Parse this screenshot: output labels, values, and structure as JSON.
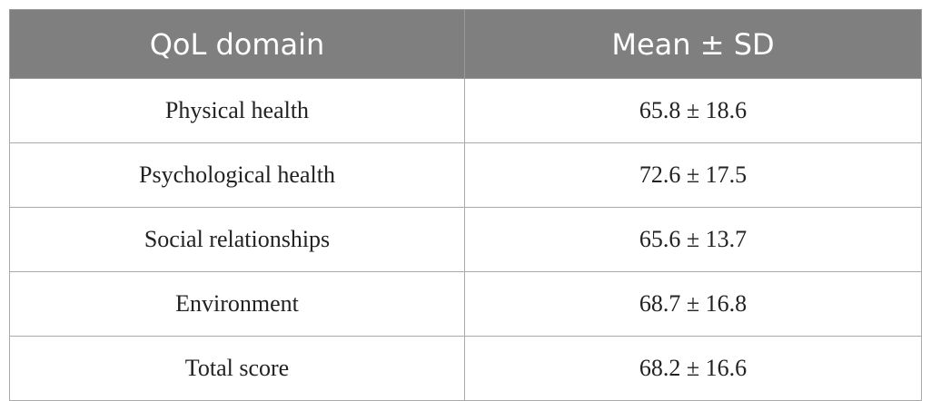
{
  "table": {
    "header": [
      "QoL domain",
      "Mean ± SD"
    ],
    "rows": [
      [
        "Physical health",
        "65.8 ± 18.6"
      ],
      [
        "Psychological health",
        "72.6 ± 17.5"
      ],
      [
        "Social relationships",
        "65.6 ± 13.7"
      ],
      [
        "Environment",
        "68.7 ± 16.8"
      ],
      [
        "Total score",
        "68.2 ± 16.6"
      ]
    ]
  }
}
